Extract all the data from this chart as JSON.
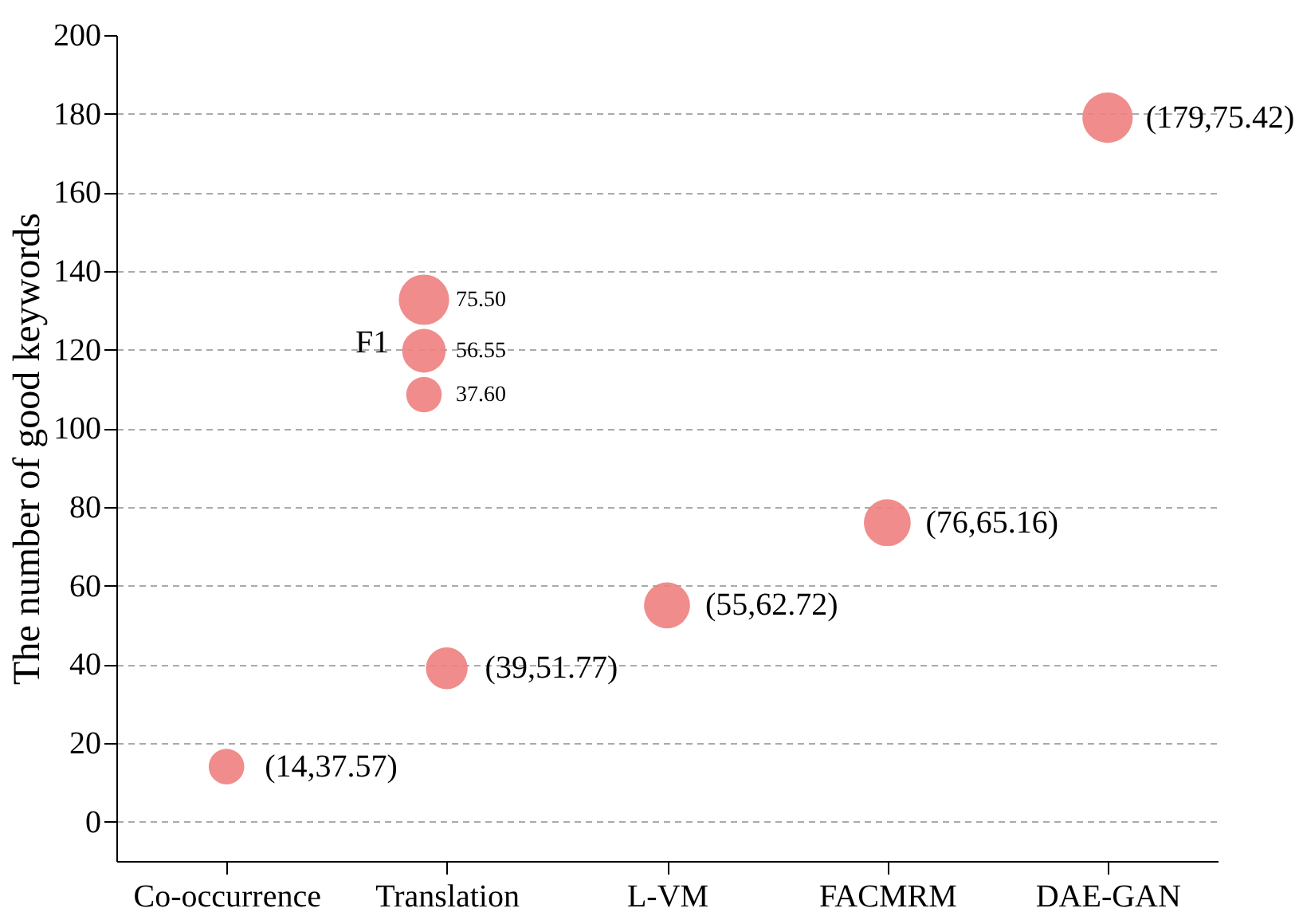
{
  "chart_data": {
    "type": "bubble",
    "ylabel": "The number of good keywords",
    "categories": [
      "Co-occurrence",
      "Translation",
      "L-VM",
      "FACMRM",
      "DAE-GAN"
    ],
    "values": [
      14,
      39,
      55,
      76,
      179
    ],
    "sizes": [
      37.57,
      51.77,
      62.72,
      65.16,
      75.42
    ],
    "value_labels": [
      "(14,37.57)",
      "(39,51.77)",
      "(55,62.72)",
      "(76,65.16)",
      "(179,75.42)"
    ],
    "color": "#ee7f7f",
    "legend_title": "F1",
    "size_legend": [
      {
        "value": 75.5,
        "label": "75.50"
      },
      {
        "value": 56.55,
        "label": "56.55"
      },
      {
        "value": 37.6,
        "label": "37.60"
      }
    ],
    "ylim": [
      -10,
      200
    ],
    "yticks": [
      0,
      20,
      40,
      60,
      80,
      100,
      120,
      140,
      160,
      180,
      200
    ],
    "grid": "y"
  }
}
